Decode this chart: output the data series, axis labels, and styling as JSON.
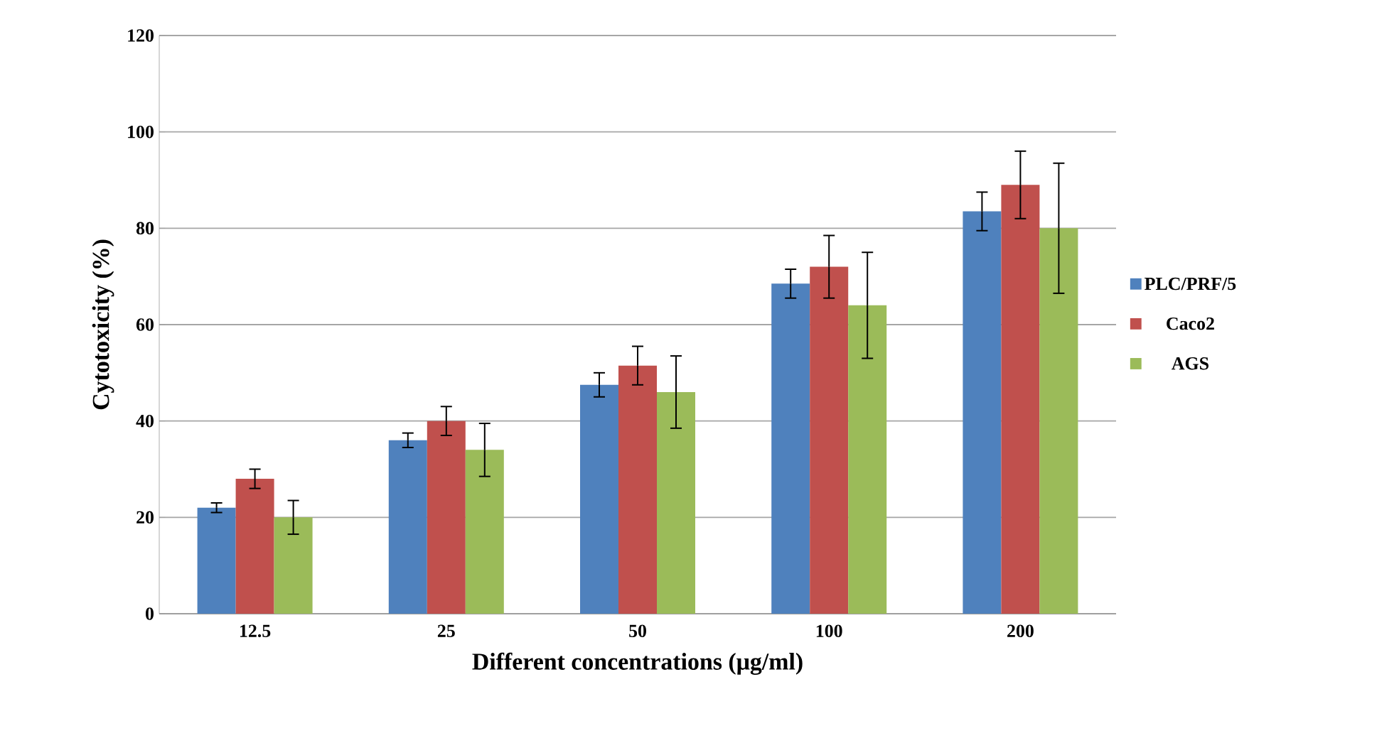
{
  "chart_data": {
    "type": "bar",
    "xlabel": "Different concentrations (μg/ml)",
    "ylabel": "Cytotoxicity (%)",
    "categories": [
      "12.5",
      "25",
      "50",
      "100",
      "200"
    ],
    "series": [
      {
        "name": "PLC/PRF/5",
        "color": "#4f81bd",
        "values": [
          22,
          36,
          47.5,
          68.5,
          83.5
        ],
        "errors": [
          1,
          1.5,
          2.5,
          3,
          4
        ]
      },
      {
        "name": "Caco2",
        "color": "#c0504d",
        "values": [
          28,
          40,
          51.5,
          72,
          89
        ],
        "errors": [
          2,
          3,
          4,
          6.5,
          7
        ]
      },
      {
        "name": "AGS",
        "color": "#9bbb59",
        "values": [
          20,
          34,
          46,
          64,
          80
        ],
        "errors": [
          3.5,
          5.5,
          7.5,
          11,
          13.5
        ]
      }
    ],
    "ylim": [
      0,
      120
    ],
    "yticks": [
      0,
      20,
      40,
      60,
      80,
      100,
      120
    ],
    "grid": "y",
    "legend": "right"
  }
}
